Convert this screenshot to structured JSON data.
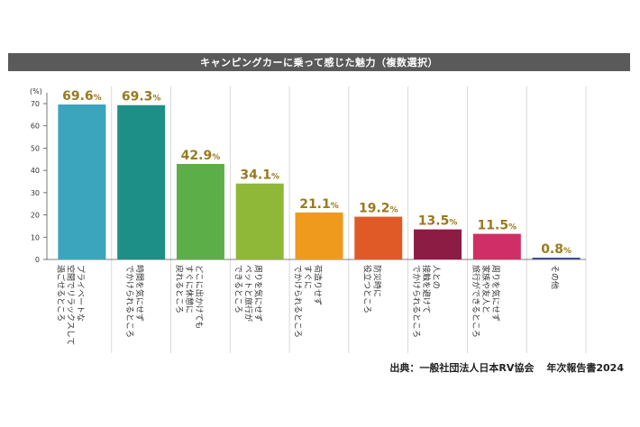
{
  "title": "キャンピングカーに乗って感じた魅力（複数選択）",
  "source": {
    "label": "出典：一般社団法人日本RV協会",
    "report": "年次報告書2024"
  },
  "colors": {
    "title_bg": "#5a5a5a",
    "value_text": "#9a7a1e",
    "bars": [
      "#3aa5bd",
      "#1e8f86",
      "#5caf48",
      "#8fb838",
      "#ef9a1c",
      "#e05a28",
      "#8d1c45",
      "#cf2f66",
      "#3d4f8a"
    ]
  },
  "chart_data": {
    "type": "bar",
    "unit_label": "(%)",
    "ylim": [
      0,
      70
    ],
    "yticks": [
      "0",
      "10",
      "20",
      "30",
      "40",
      "50",
      "60",
      "70"
    ],
    "grid": "vertical separators",
    "categories": [
      "プライベートな空間でリラックスして過ごせるところ",
      "時間を気にせずでかけられるところ",
      "どこに出かけてもすぐに休憩に戻れるところ",
      "周りを気にせずペットと旅行ができるところ",
      "荷造りせずすぐにでかけられるところ",
      "防災時に役立つところ",
      "人との接触を避けてでかけられるところ",
      "周りを気にせず家族や友人と旅行ができるところ",
      "その他"
    ],
    "category_lines": [
      [
        "プライベートな",
        "空間でリラックスして",
        "過ごせるところ"
      ],
      [
        "時間を気にせず",
        "でかけられるところ"
      ],
      [
        "どこに出かけても",
        "すぐに休憩に",
        "戻れるところ"
      ],
      [
        "周りを気にせず",
        "ペットと旅行が",
        "できるところ"
      ],
      [
        "荷造りせず",
        "すぐに",
        "でかけられるところ"
      ],
      [
        "防災時に",
        "役立つところ"
      ],
      [
        "人との",
        "接触を避けて",
        "でかけられるところ"
      ],
      [
        "周りを気にせず",
        "家族や友人と",
        "旅行ができるところ"
      ],
      [
        "その他"
      ]
    ],
    "values": [
      69.6,
      69.3,
      42.9,
      34.1,
      21.1,
      19.2,
      13.5,
      11.5,
      0.8
    ],
    "value_labels": [
      [
        "69.6",
        "%"
      ],
      [
        "69.3",
        "%"
      ],
      [
        "42.9",
        "%"
      ],
      [
        "34.1",
        "%"
      ],
      [
        "21.1",
        "%"
      ],
      [
        "19.2",
        "%"
      ],
      [
        "13.5",
        "%"
      ],
      [
        "11.5",
        "%"
      ],
      [
        "0.8",
        "%"
      ]
    ]
  }
}
